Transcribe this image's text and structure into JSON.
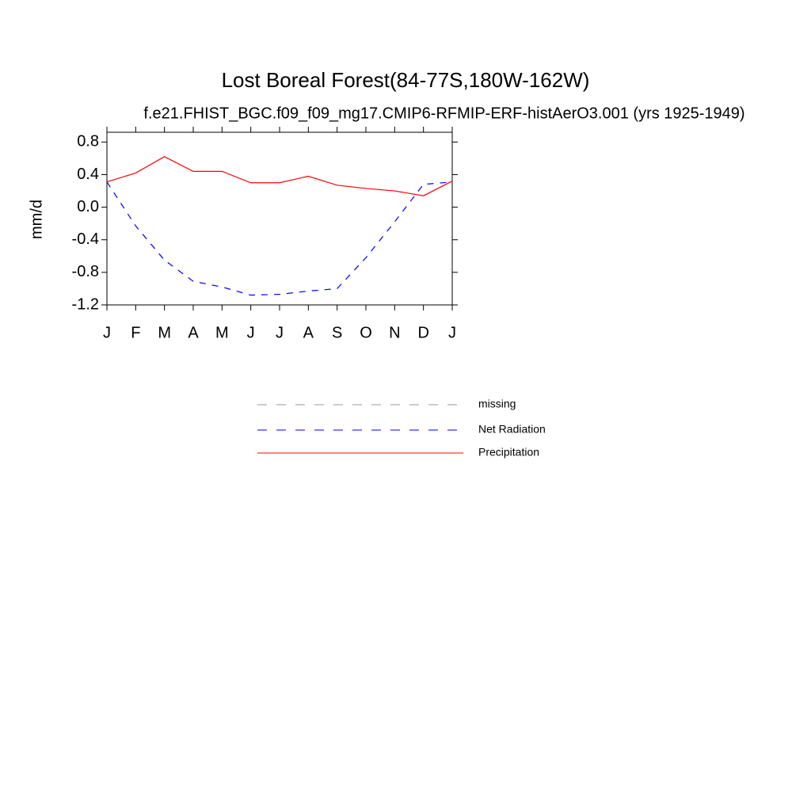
{
  "chart_data": {
    "type": "line",
    "title": "Lost Boreal Forest(84-77S,180W-162W)",
    "subtitle": "f.e21.FHIST_BGC.f09_f09_mg17.CMIP6-RFMIP-ERF-histAerO3.001 (yrs 1925-1949)",
    "y_label": "mm/d",
    "categories": [
      "J",
      "F",
      "M",
      "A",
      "M",
      "J",
      "J",
      "A",
      "S",
      "O",
      "N",
      "D",
      "J"
    ],
    "series": [
      {
        "name": "missing",
        "color": "#999999",
        "dashed": true,
        "values": [
          null,
          null,
          null,
          null,
          null,
          null,
          null,
          null,
          null,
          null,
          null,
          null,
          null
        ]
      },
      {
        "name": "Net Radiation",
        "color": "#0000ff",
        "dashed": true,
        "values": [
          0.31,
          -0.23,
          -0.65,
          -0.91,
          -0.98,
          -1.08,
          -1.07,
          -1.03,
          -1.0,
          -0.62,
          -0.18,
          0.28,
          0.31
        ]
      },
      {
        "name": "Precipitation",
        "color": "#ff0000",
        "dashed": false,
        "values": [
          0.31,
          0.42,
          0.62,
          0.44,
          0.44,
          0.3,
          0.3,
          0.38,
          0.27,
          0.23,
          0.2,
          0.14,
          0.32
        ]
      }
    ],
    "ylim": [
      -1.2,
      0.92
    ],
    "yticks": [
      -1.2,
      -0.8,
      -0.4,
      {
        "value": 0,
        "label": "0.0"
      },
      0.4,
      0.8
    ],
    "grid": false
  }
}
